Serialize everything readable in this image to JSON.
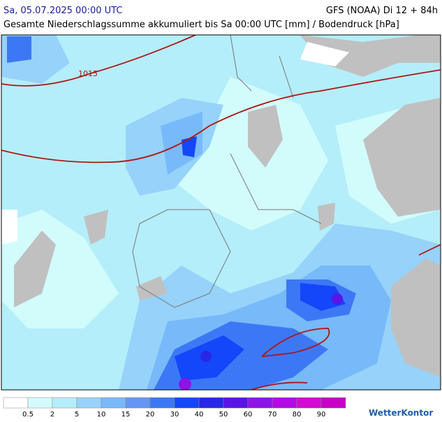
{
  "header": {
    "date": "Sa, 05.07.2025 00:00 UTC",
    "model": "GFS (NOAA) Di 12 + 84h",
    "subtitle": "Gesamte Niederschlagssumme akkumuliert bis Sa 00:00 UTC [mm] / Bodendruck [hPa]"
  },
  "map": {
    "isobar_label": "1015"
  },
  "legend": {
    "colors": [
      "#ffffff",
      "#d2fcfc",
      "#b4eefa",
      "#96d2fa",
      "#78b9fa",
      "#6496f5",
      "#3c78f5",
      "#1446fa",
      "#2828e6",
      "#5a14e6",
      "#8c14e6",
      "#b40ae6",
      "#d20ad2",
      "#c800c8"
    ],
    "labels": [
      "0.5",
      "2",
      "5",
      "10",
      "15",
      "20",
      "30",
      "40",
      "50",
      "60",
      "70",
      "80",
      "90"
    ]
  },
  "logo": "WetterKontor"
}
